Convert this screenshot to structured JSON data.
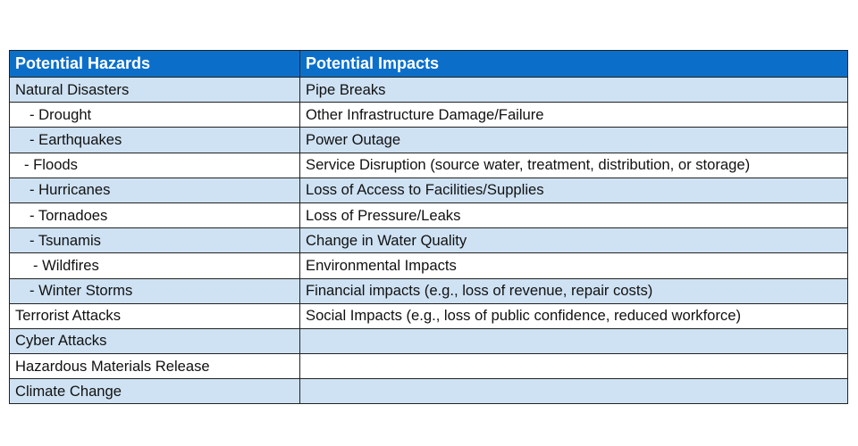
{
  "table": {
    "header": [
      "Potential Hazards",
      "Potential Impacts"
    ],
    "rows": [
      [
        "Natural Disasters",
        "Pipe Breaks"
      ],
      [
        "- Drought",
        "Other Infrastructure Damage/Failure"
      ],
      [
        "- Earthquakes",
        "Power Outage"
      ],
      [
        "- Floods",
        "Service Disruption (source water, treatment, distribution, or storage)"
      ],
      [
        "- Hurricanes",
        "Loss of Access to Facilities/Supplies"
      ],
      [
        "- Tornadoes",
        "Loss of Pressure/Leaks"
      ],
      [
        "- Tsunamis",
        "Change in Water Quality"
      ],
      [
        "- Wildfires",
        "Environmental Impacts"
      ],
      [
        "- Winter Storms",
        "Financial impacts (e.g., loss of revenue, repair costs)"
      ],
      [
        "Terrorist Attacks",
        "Social Impacts (e.g., loss of public confidence, reduced workforce)"
      ],
      [
        "Cyber Attacks"
      ],
      [
        "Hazardous Materials Release"
      ],
      [
        "Climate Change"
      ]
    ]
  }
}
